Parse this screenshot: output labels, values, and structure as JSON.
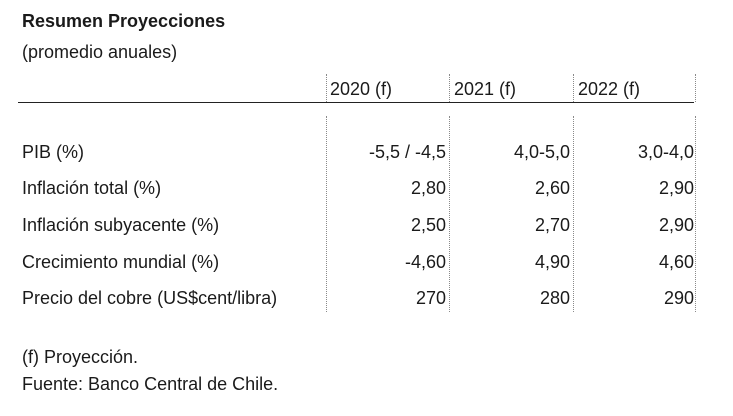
{
  "title": "Resumen Proyecciones",
  "subtitle": "(promedio anuales)",
  "columns": [
    "2020 (f)",
    "2021 (f)",
    "2022 (f)"
  ],
  "rows": [
    {
      "label": "PIB (%)",
      "values": [
        "-5,5 / -4,5",
        "4,0-5,0",
        "3,0-4,0"
      ]
    },
    {
      "label": "Inflación total (%)",
      "values": [
        "2,80",
        "2,60",
        "2,90"
      ]
    },
    {
      "label": "Inflación subyacente (%)",
      "values": [
        "2,50",
        "2,70",
        "2,90"
      ]
    },
    {
      "label": "Crecimiento mundial (%)",
      "values": [
        "-4,60",
        "4,90",
        "4,60"
      ]
    },
    {
      "label": "Precio del cobre (US$cent/libra)",
      "values": [
        "270",
        "280",
        "290"
      ]
    }
  ],
  "footnotes": [
    "(f) Proyección.",
    "Fuente: Banco Central de Chile."
  ]
}
